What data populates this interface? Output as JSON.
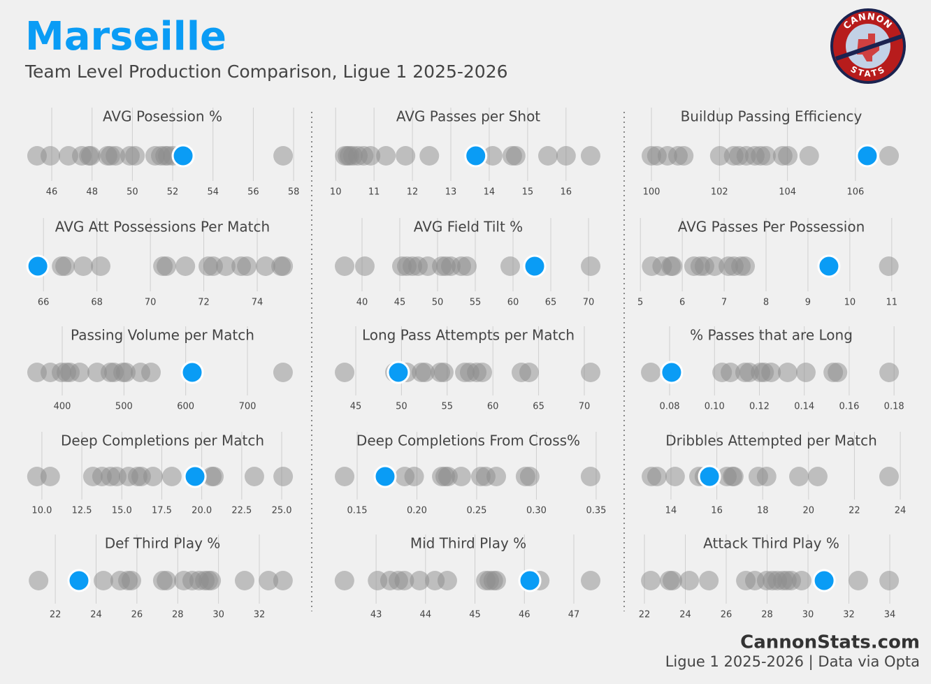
{
  "header": {
    "title": "Marseille",
    "subtitle": "Team Level Production Comparison, Ligue 1 2025-2026"
  },
  "logo": {
    "top": "CANNON",
    "bottom": "STATS"
  },
  "footer": {
    "site": "CannonStats.com",
    "note": "Ligue 1 2025-2026 | Data via Opta"
  },
  "chart_data": [
    {
      "type": "strip",
      "title": "AVG Posession %",
      "xlim": [
        44.82,
        58.17
      ],
      "xticks": [
        46,
        48,
        50,
        52,
        54,
        56,
        58
      ],
      "grid": true,
      "series": [
        {
          "color": "#8c8c8c",
          "values": [
            45.27,
            45.93,
            46.83,
            47.49,
            47.84,
            47.94,
            48.77,
            48.91,
            49.16,
            49.88,
            50.13,
            51.13,
            51.41,
            51.62,
            51.76,
            52.0,
            57.48
          ]
        },
        {
          "color": "#0a9cf5",
          "values": [
            52.52
          ]
        }
      ]
    },
    {
      "type": "strip",
      "title": "AVG Passes per Shot",
      "xlim": [
        9.96,
        16.95
      ],
      "xticks": [
        10,
        11,
        12,
        13,
        14,
        15,
        16
      ],
      "grid": true,
      "series": [
        {
          "color": "#8c8c8c",
          "values": [
            10.24,
            10.31,
            10.36,
            10.45,
            10.58,
            10.73,
            10.91,
            11.31,
            11.82,
            12.44,
            14.09,
            14.6,
            14.69,
            15.53,
            16.0,
            16.64
          ]
        },
        {
          "color": "#0a9cf5",
          "values": [
            13.65
          ]
        }
      ]
    },
    {
      "type": "strip",
      "title": "Buildup Passing Efficiency",
      "xlim": [
        99.65,
        107.4
      ],
      "xticks": [
        100,
        102,
        104,
        106
      ],
      "grid": true,
      "series": [
        {
          "color": "#8c8c8c",
          "values": [
            100.0,
            100.16,
            100.47,
            100.78,
            100.95,
            102.01,
            102.42,
            102.57,
            102.79,
            103.04,
            103.21,
            103.37,
            103.86,
            104.01,
            104.64,
            106.99
          ]
        },
        {
          "color": "#0a9cf5",
          "values": [
            106.35
          ]
        }
      ]
    },
    {
      "type": "strip",
      "title": "AVG Att Possessions Per Match",
      "xlim": [
        65.42,
        75.49
      ],
      "xticks": [
        66,
        68,
        70,
        72,
        74
      ],
      "grid": true,
      "series": [
        {
          "color": "#8c8c8c",
          "values": [
            66.68,
            66.81,
            67.49,
            68.14,
            70.47,
            70.6,
            71.31,
            72.17,
            72.35,
            72.82,
            73.4,
            73.61,
            74.31,
            74.89,
            74.97
          ]
        },
        {
          "color": "#0a9cf5",
          "values": [
            65.79
          ]
        }
      ]
    },
    {
      "type": "strip",
      "title": "AVG Field Tilt %",
      "xlim": [
        36.3,
        71.85
      ],
      "xticks": [
        40,
        45,
        50,
        55,
        60,
        65,
        70
      ],
      "grid": true,
      "series": [
        {
          "color": "#8c8c8c",
          "values": [
            37.69,
            40.37,
            45.28,
            45.93,
            46.67,
            47.41,
            48.7,
            50.56,
            51.11,
            51.76,
            53.15,
            53.89,
            59.63,
            70.28
          ]
        },
        {
          "color": "#0a9cf5",
          "values": [
            62.87
          ]
        }
      ]
    },
    {
      "type": "strip",
      "title": "AVG Passes Per Possession",
      "xlim": [
        4.98,
        11.27
      ],
      "xticks": [
        5,
        6,
        7,
        8,
        9,
        10,
        11
      ],
      "grid": true,
      "series": [
        {
          "color": "#8c8c8c",
          "values": [
            5.27,
            5.52,
            5.73,
            5.77,
            6.28,
            6.43,
            6.53,
            6.77,
            7.1,
            7.23,
            7.4,
            7.5,
            10.93
          ]
        },
        {
          "color": "#0a9cf5",
          "values": [
            9.5
          ]
        }
      ]
    },
    {
      "type": "strip",
      "title": "Passing Volume per Match",
      "xlim": [
        344.5,
        780.4
      ],
      "xticks": [
        400,
        500,
        600,
        700
      ],
      "grid": true,
      "series": [
        {
          "color": "#8c8c8c",
          "values": [
            359.2,
            380.8,
            398.9,
            406.8,
            412.5,
            428.3,
            456.6,
            478.1,
            483.8,
            498.5,
            503.0,
            526.8,
            543.8,
            757.7
          ]
        },
        {
          "color": "#0a9cf5",
          "values": [
            610.6
          ]
        }
      ]
    },
    {
      "type": "strip",
      "title": "Long Pass Attempts per Match",
      "xlim": [
        42.63,
        71.99
      ],
      "xticks": [
        45,
        50,
        55,
        60,
        65,
        70
      ],
      "grid": true,
      "series": [
        {
          "color": "#8c8c8c",
          "values": [
            43.78,
            49.28,
            50.58,
            52.19,
            52.57,
            54.25,
            54.63,
            56.93,
            57.46,
            58.23,
            58.84,
            63.12,
            63.96,
            70.69
          ]
        },
        {
          "color": "#0a9cf5",
          "values": [
            49.66
          ]
        }
      ]
    },
    {
      "type": "strip",
      "title": "% Passes that are Long",
      "xlim": [
        0.0666,
        0.184
      ],
      "xticks": [
        0.08,
        {
          "value": 0.1,
          "label": "0.10"
        },
        0.12,
        0.14,
        0.16,
        0.18
      ],
      "grid": true,
      "series": [
        {
          "color": "#8c8c8c",
          "values": [
            0.0716,
            0.1034,
            0.1071,
            0.1136,
            0.1155,
            0.1205,
            0.1221,
            0.1252,
            0.1326,
            0.1407,
            0.1529,
            0.1548,
            0.1778
          ]
        },
        {
          "color": "#0a9cf5",
          "values": [
            0.0809
          ]
        }
      ]
    },
    {
      "type": "strip",
      "title": "Deep Completions per Match",
      "xlim": [
        9.13,
        25.96
      ],
      "xticks": [
        {
          "value": 10,
          "label": "10.0"
        },
        12.5,
        {
          "value": 15,
          "label": "15.0"
        },
        17.5,
        {
          "value": 20,
          "label": "20.0"
        },
        22.5,
        {
          "value": 25,
          "label": "25.0"
        }
      ],
      "grid": true,
      "series": [
        {
          "color": "#8c8c8c",
          "values": [
            9.69,
            10.52,
            13.19,
            13.76,
            14.29,
            14.68,
            15.42,
            15.99,
            16.21,
            16.95,
            18.13,
            20.63,
            20.76,
            23.29,
            25.09
          ]
        },
        {
          "color": "#0a9cf5",
          "values": [
            19.58
          ]
        }
      ]
    },
    {
      "type": "strip",
      "title": "Deep Completions From Cross%",
      "xlim": [
        0.1307,
        0.3553
      ],
      "xticks": [
        0.15,
        {
          "value": 0.2,
          "label": "0.20"
        },
        0.25,
        {
          "value": 0.3,
          "label": "0.30"
        },
        0.35
      ],
      "grid": true,
      "series": [
        {
          "color": "#8c8c8c",
          "values": [
            0.1395,
            0.1898,
            0.1977,
            0.2208,
            0.2237,
            0.226,
            0.2371,
            0.2535,
            0.2576,
            0.2664,
            0.2909,
            0.2944,
            0.3453
          ]
        },
        {
          "color": "#0a9cf5",
          "values": [
            0.1734
          ]
        }
      ]
    },
    {
      "type": "strip",
      "title": "Dribbles Attempted per Match",
      "xlim": [
        12.63,
        24.12
      ],
      "xticks": [
        14,
        16,
        18,
        20,
        22,
        24
      ],
      "grid": true,
      "series": [
        {
          "color": "#8c8c8c",
          "values": [
            13.15,
            13.39,
            14.18,
            15.22,
            15.46,
            16.44,
            16.68,
            16.74,
            17.81,
            18.17,
            19.58,
            20.4,
            23.51
          ]
        },
        {
          "color": "#0a9cf5",
          "values": [
            15.68
          ]
        }
      ]
    },
    {
      "type": "strip",
      "title": "Def Third Play %",
      "xlim": [
        20.66,
        33.85
      ],
      "xticks": [
        22,
        24,
        26,
        28,
        30,
        32
      ],
      "grid": true,
      "series": [
        {
          "color": "#8c8c8c",
          "values": [
            21.18,
            24.36,
            25.18,
            25.56,
            25.73,
            27.27,
            27.45,
            28.3,
            28.71,
            29.05,
            29.33,
            29.5,
            29.64,
            31.28,
            32.45,
            33.16
          ]
        },
        {
          "color": "#0a9cf5",
          "values": [
            23.16
          ]
        }
      ]
    },
    {
      "type": "strip",
      "title": "Mid Third Play %",
      "xlim": [
        42.15,
        47.58
      ],
      "xticks": [
        43,
        44,
        45,
        46,
        47
      ],
      "grid": true,
      "series": [
        {
          "color": "#8c8c8c",
          "values": [
            42.36,
            43.03,
            43.28,
            43.45,
            43.57,
            43.88,
            44.19,
            44.44,
            45.22,
            45.29,
            45.37,
            45.43,
            46.31,
            47.34
          ]
        },
        {
          "color": "#0a9cf5",
          "values": [
            46.11
          ]
        }
      ]
    },
    {
      "type": "strip",
      "title": "Attack Third Play %",
      "xlim": [
        21.76,
        34.65
      ],
      "xticks": [
        22,
        24,
        26,
        28,
        30,
        32,
        34
      ],
      "grid": true,
      "series": [
        {
          "color": "#8c8c8c",
          "values": [
            22.31,
            23.23,
            23.37,
            24.19,
            25.15,
            26.96,
            27.4,
            27.98,
            28.26,
            28.5,
            28.77,
            28.97,
            29.18,
            29.69,
            32.46,
            33.97
          ]
        },
        {
          "color": "#0a9cf5",
          "values": [
            30.79
          ]
        }
      ]
    }
  ]
}
